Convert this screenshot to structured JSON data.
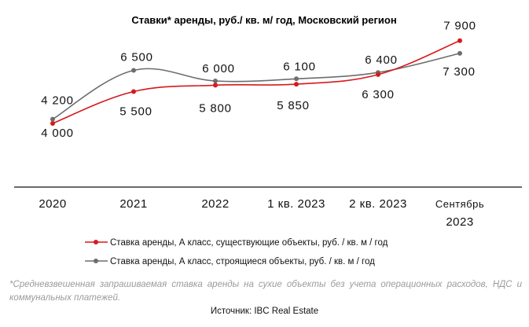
{
  "chart_data": {
    "type": "line",
    "title": "Ставки* аренды, руб./ кв. м/ год, Московский регион",
    "categories": [
      "2020",
      "2021",
      "2022",
      "1 кв. 2023",
      "2 кв. 2023",
      "Сентябрь 2023"
    ],
    "category_lines": [
      [
        "2020"
      ],
      [
        "2021"
      ],
      [
        "2022"
      ],
      [
        "1 кв. 2023"
      ],
      [
        "2 кв. 2023"
      ],
      [
        "Сентябрь",
        "2023"
      ]
    ],
    "series": [
      {
        "name": "Ставка аренды, А класс, существующие объекты, руб. / кв. м / год",
        "color": "#d7191c",
        "values": [
          4000,
          5500,
          5800,
          5850,
          6300,
          7900
        ],
        "labels": [
          "4 000",
          "5 500",
          "5 800",
          "5 850",
          "6 300",
          "7 900"
        ]
      },
      {
        "name": "Ставка аренды, А класс, строящиеся объекты, руб. / кв. м / год",
        "color": "#6d6d6d",
        "values": [
          4200,
          6500,
          6000,
          6100,
          6400,
          7300
        ],
        "labels": [
          "4 200",
          "6 500",
          "6 000",
          "6 100",
          "6 400",
          "7 300"
        ]
      }
    ],
    "axis_color": "#111111",
    "grid": false,
    "legend_position": "bottom"
  },
  "footnote": "*Средневзвешенная запрашиваемая ставка аренды на сухие объекты без учета операционных расходов, НДС и коммунальных платежей.",
  "source": "Источник: IBC Real Estate"
}
